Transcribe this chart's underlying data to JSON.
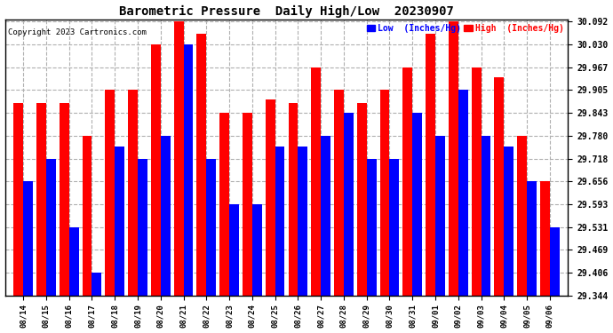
{
  "title": "Barometric Pressure  Daily High/Low  20230907",
  "copyright": "Copyright 2023 Cartronics.com",
  "legend_low": "Low  (Inches/Hg)",
  "legend_high": "High  (Inches/Hg)",
  "dates": [
    "08/14",
    "08/15",
    "08/16",
    "08/17",
    "08/18",
    "08/19",
    "08/20",
    "08/21",
    "08/22",
    "08/23",
    "08/24",
    "08/25",
    "08/26",
    "08/27",
    "08/28",
    "08/29",
    "08/30",
    "08/31",
    "09/01",
    "09/02",
    "09/03",
    "09/04",
    "09/05",
    "09/06"
  ],
  "highs": [
    29.87,
    29.87,
    29.87,
    29.78,
    29.905,
    29.905,
    30.03,
    30.092,
    30.06,
    29.843,
    29.843,
    29.88,
    29.87,
    29.967,
    29.905,
    29.87,
    29.905,
    29.967,
    30.06,
    30.092,
    29.967,
    29.94,
    29.78,
    29.656
  ],
  "lows": [
    29.656,
    29.718,
    29.531,
    29.406,
    29.75,
    29.718,
    29.78,
    30.03,
    29.718,
    29.593,
    29.593,
    29.75,
    29.75,
    29.78,
    29.843,
    29.718,
    29.718,
    29.843,
    29.78,
    29.905,
    29.78,
    29.75,
    29.656,
    29.531
  ],
  "ymin": 29.344,
  "ymax": 30.092,
  "yticks": [
    29.344,
    29.406,
    29.469,
    29.531,
    29.593,
    29.656,
    29.718,
    29.78,
    29.843,
    29.905,
    29.967,
    30.03,
    30.092
  ],
  "low_color": "#0000ff",
  "high_color": "#ff0000",
  "bg_color": "#ffffff",
  "grid_color": "#b0b0b0",
  "title_color": "#000000",
  "copyright_color": "#000000"
}
